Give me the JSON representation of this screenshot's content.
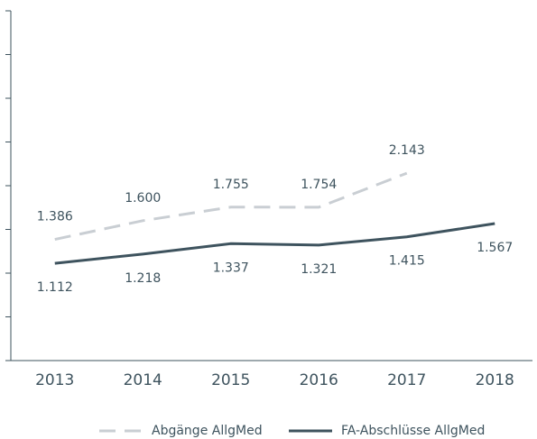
{
  "chart_data": {
    "type": "line",
    "categories": [
      "2013",
      "2014",
      "2015",
      "2016",
      "2017",
      "2018"
    ],
    "series": [
      {
        "name": "Abgänge AllgMed",
        "color": "#c9ced3",
        "dashed": true,
        "values": [
          1386,
          1600,
          1755,
          1754,
          2143,
          null
        ],
        "value_labels": [
          "1.386",
          "1.600",
          "1.755",
          "1.754",
          "2.143",
          null
        ]
      },
      {
        "name": "FA-Abschlüsse AllgMed",
        "color": "#3e535e",
        "dashed": false,
        "values": [
          1112,
          1218,
          1337,
          1321,
          1415,
          1567
        ],
        "value_labels": [
          "1.112",
          "1.218",
          "1.337",
          "1.321",
          "1.415",
          "1.567"
        ]
      }
    ],
    "ylim": [
      0,
      4000
    ],
    "yticks": [
      0,
      500,
      1000,
      1500,
      2000,
      2500,
      3000,
      3500,
      4000
    ],
    "grid": false,
    "legend": "bottom"
  }
}
